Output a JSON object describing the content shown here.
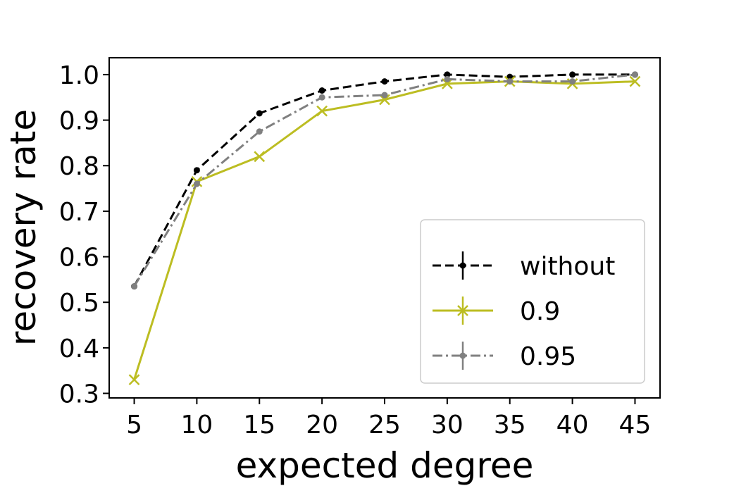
{
  "chart_data": {
    "type": "line",
    "xlabel": "expected degree",
    "ylabel": "recovery rate",
    "x": [
      5,
      10,
      15,
      20,
      25,
      30,
      35,
      40,
      45
    ],
    "xlim": [
      3,
      47
    ],
    "ylim": [
      0.29,
      1.037
    ],
    "xticks": [
      "5",
      "10",
      "15",
      "20",
      "25",
      "30",
      "35",
      "40",
      "45"
    ],
    "yticks": [
      "0.3",
      "0.4",
      "0.5",
      "0.6",
      "0.7",
      "0.8",
      "0.9",
      "1.0"
    ],
    "grid": false,
    "legend_position": "lower-right",
    "series": [
      {
        "name": "without",
        "color": "#000000",
        "dash": "dashed",
        "marker": "dot",
        "values": [
          0.535,
          0.79,
          0.915,
          0.965,
          0.985,
          1.0,
          0.995,
          1.0,
          1.0
        ]
      },
      {
        "name": "0.9",
        "color": "#bcbd22",
        "dash": "solid",
        "marker": "x",
        "values": [
          0.33,
          0.765,
          0.82,
          0.92,
          0.945,
          0.98,
          0.985,
          0.98,
          0.985
        ]
      },
      {
        "name": "0.95",
        "color": "#808080",
        "dash": "dashdot",
        "marker": "dot",
        "values": [
          0.535,
          0.76,
          0.875,
          0.95,
          0.955,
          0.99,
          0.985,
          0.985,
          1.0
        ]
      }
    ]
  }
}
